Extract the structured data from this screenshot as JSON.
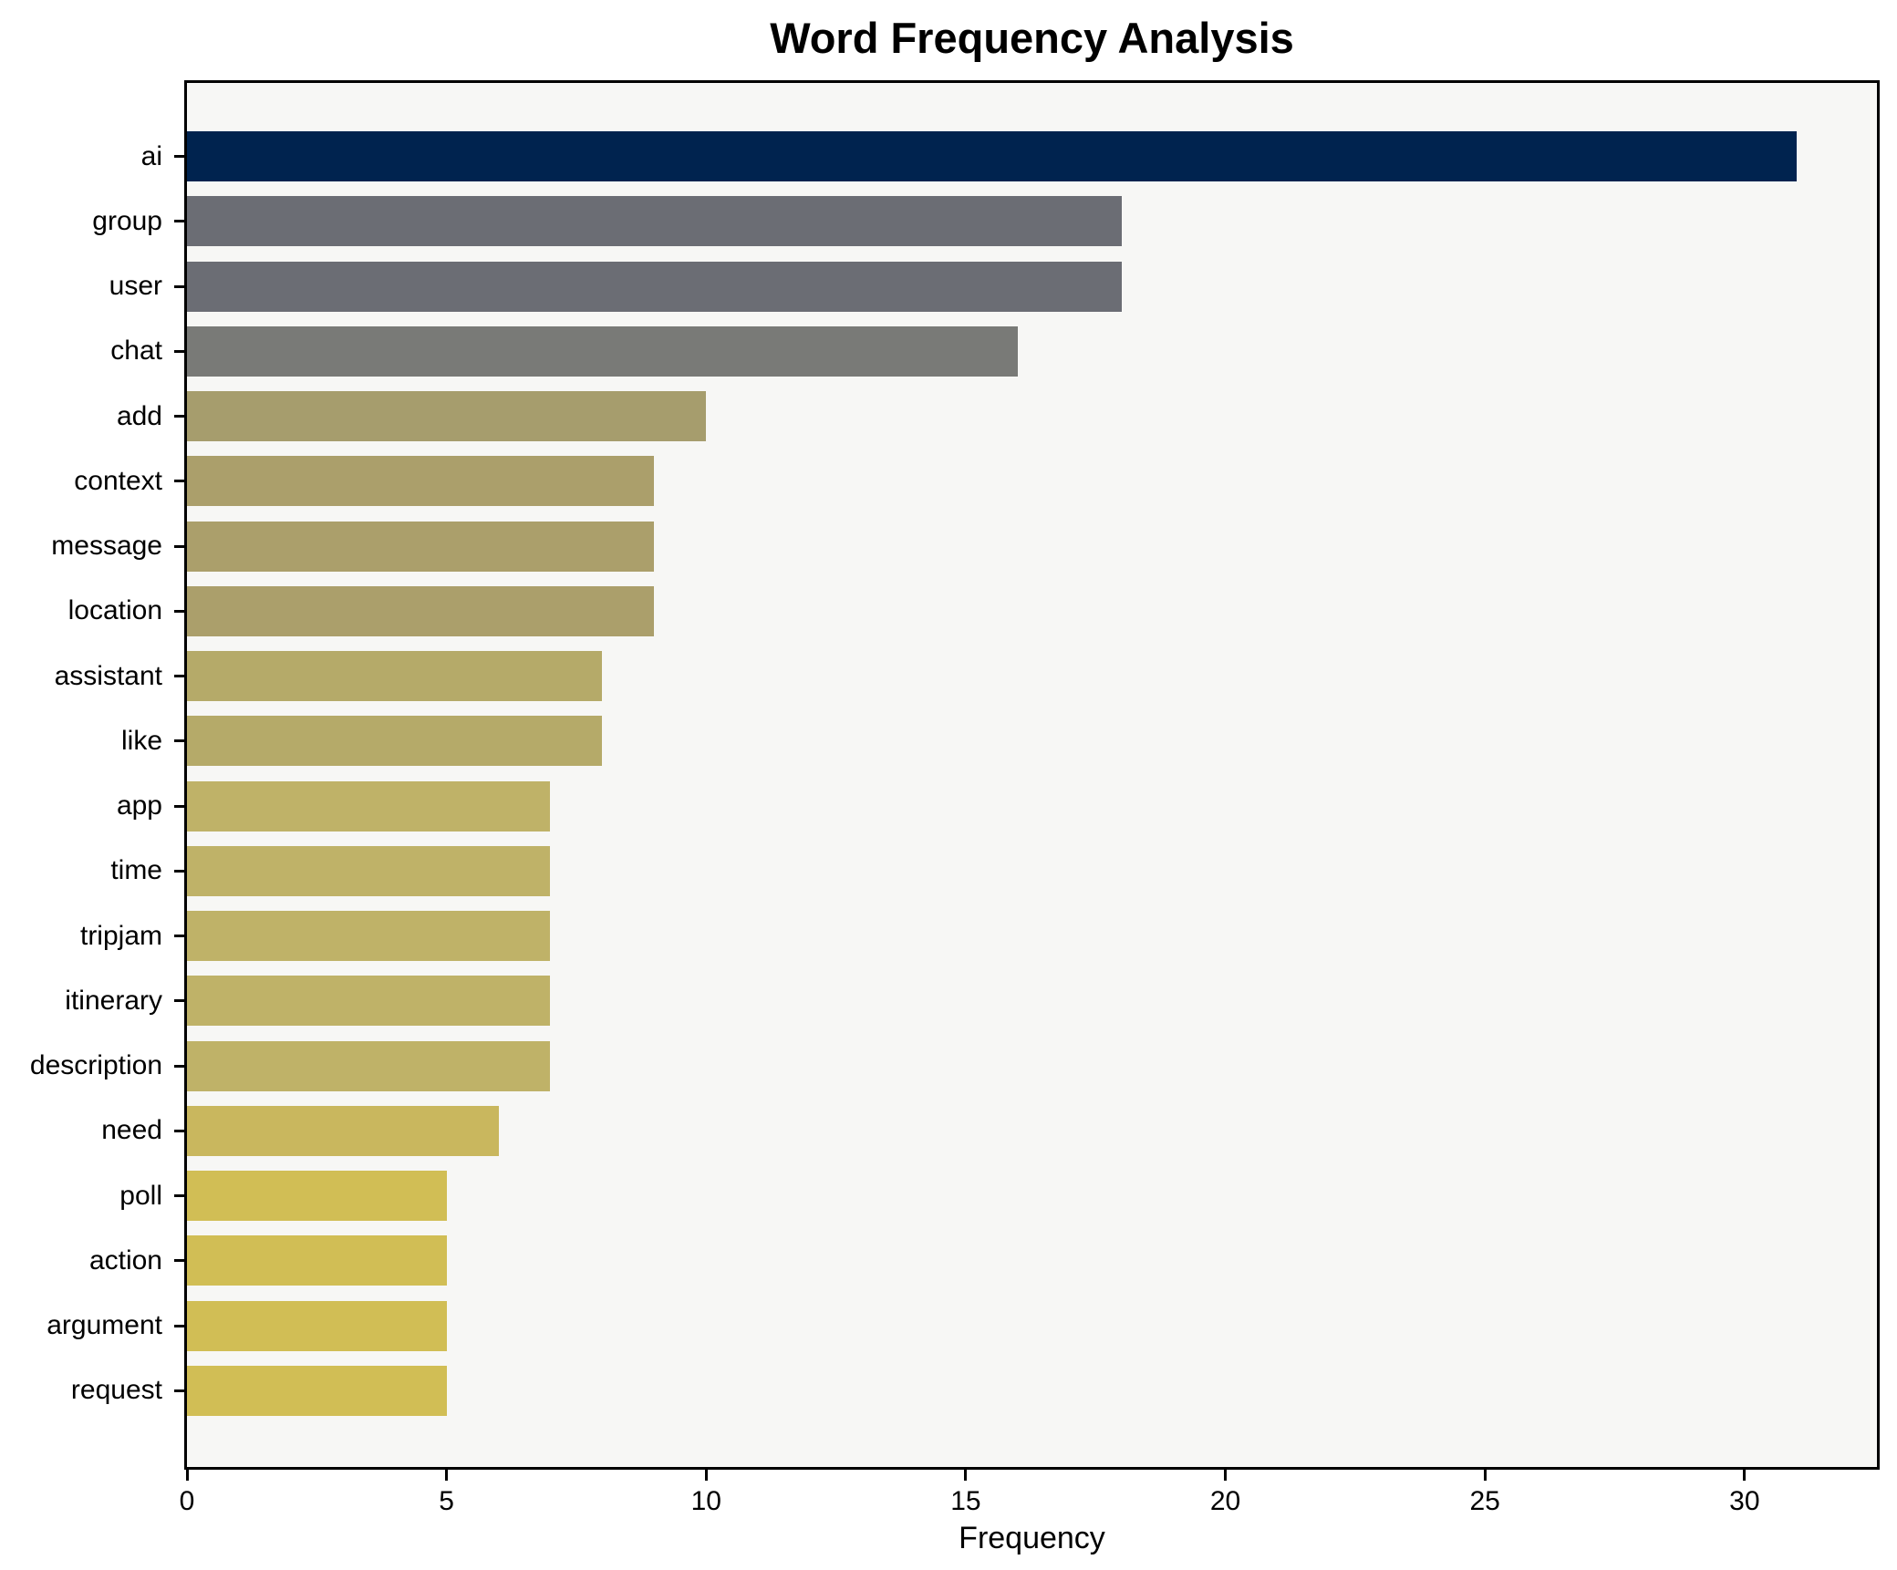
{
  "title": "Word Frequency Analysis",
  "chart_data": {
    "type": "bar",
    "orientation": "horizontal",
    "title": "Word Frequency Analysis",
    "xlabel": "Frequency",
    "ylabel": "",
    "categories": [
      "ai",
      "group",
      "user",
      "chat",
      "add",
      "context",
      "message",
      "location",
      "assistant",
      "like",
      "app",
      "time",
      "tripjam",
      "itinerary",
      "description",
      "need",
      "poll",
      "action",
      "argument",
      "request"
    ],
    "values": [
      31,
      18,
      18,
      16,
      10,
      9,
      9,
      9,
      8,
      8,
      7,
      7,
      7,
      7,
      7,
      6,
      5,
      5,
      5,
      5
    ],
    "bar_colors": [
      "#00234f",
      "#6b6d74",
      "#6b6d74",
      "#797a77",
      "#a69d6d",
      "#ab9f6b",
      "#ab9f6b",
      "#ab9f6b",
      "#b5aa69",
      "#b5aa69",
      "#bfb268",
      "#bfb268",
      "#bfb268",
      "#bfb268",
      "#bfb268",
      "#c9b75e",
      "#d1be55",
      "#d1be55",
      "#d1be55",
      "#d1be55"
    ],
    "x_ticks": [
      0,
      5,
      10,
      15,
      20,
      25,
      30
    ],
    "xlim": [
      0,
      32.55
    ],
    "grid": false,
    "legend": null,
    "colormap": "cividis",
    "plot_background": "#f7f7f5",
    "figure_background": "#ffffff",
    "axis_color": "#000000"
  }
}
